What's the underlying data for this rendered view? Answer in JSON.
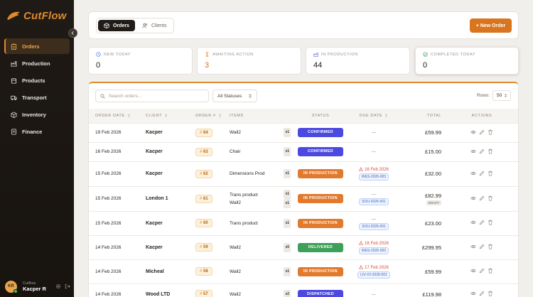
{
  "app": {
    "name": "CutFlow"
  },
  "sidebar": {
    "items": [
      {
        "label": "Orders",
        "icon": "clipboard-icon",
        "active": true
      },
      {
        "label": "Production",
        "icon": "factory-icon",
        "active": false
      },
      {
        "label": "Products",
        "icon": "box-icon",
        "active": false
      },
      {
        "label": "Transport",
        "icon": "truck-icon",
        "active": false
      },
      {
        "label": "Inventory",
        "icon": "package-icon",
        "active": false
      },
      {
        "label": "Finance",
        "icon": "receipt-icon",
        "active": false
      }
    ],
    "user": {
      "initials": "KR",
      "org": "Cutflow",
      "name": "Kacper R"
    }
  },
  "topbar": {
    "tabs": [
      {
        "label": "Orders",
        "active": true
      },
      {
        "label": "Clients",
        "active": false
      }
    ],
    "new_order": "+ New Order"
  },
  "stats": [
    {
      "label": "NEW TODAY",
      "value": "0",
      "icon": "clock-icon"
    },
    {
      "label": "AWAITING ACTION",
      "value": "3",
      "icon": "hourglass-icon"
    },
    {
      "label": "IN PRODUCTION",
      "value": "44",
      "icon": "factory-icon"
    },
    {
      "label": "COMPLETED TODAY",
      "value": "0",
      "icon": "check-circle-icon"
    }
  ],
  "toolbar": {
    "search_placeholder": "Search orders...",
    "status_filter": "All Statuses",
    "rows_label": "Rows:",
    "rows_value": "50"
  },
  "table": {
    "headers": {
      "order_date": "ORDER DATE",
      "client": "CLIENT",
      "order_no": "ORDER #",
      "items": "ITEMS",
      "status": "STATUS",
      "due_date": "DUE DATE",
      "total": "TOTAL",
      "actions": "ACTIONS"
    },
    "rows": [
      {
        "date": "19 Feb 2026",
        "client": "Kacper",
        "order": "64",
        "items": [
          "Wall2"
        ],
        "qty": [
          "x1"
        ],
        "status": "CONFIRMED",
        "status_color": "#4b49e0",
        "due": "—",
        "due_ref": "",
        "total": "£59.99",
        "draft": ""
      },
      {
        "date": "16 Feb 2026",
        "client": "Kacper",
        "order": "63",
        "items": [
          "Chair"
        ],
        "qty": [
          "x1"
        ],
        "status": "CONFIRMED",
        "status_color": "#4b49e0",
        "due": "—",
        "due_ref": "",
        "total": "£15.00",
        "draft": ""
      },
      {
        "date": "15 Feb 2026",
        "client": "Kacper",
        "order": "62",
        "items": [
          "Dimensions Prod"
        ],
        "qty": [
          "x1"
        ],
        "status": "IN PRODUCTION",
        "status_color": "#e27a2d",
        "due": "16 Feb 2026",
        "due_ref": "WES-2026-003",
        "total": "£32.00",
        "draft": ""
      },
      {
        "date": "15 Feb 2026",
        "client": "London 1",
        "order": "61",
        "items": [
          "Trans product",
          "Wall2"
        ],
        "qty": [
          "x1",
          "x1"
        ],
        "status": "IN PRODUCTION",
        "status_color": "#e27a2d",
        "due": "—",
        "due_ref": "SOU-2026-001",
        "total": "£82.99",
        "draft": "DRAFT"
      },
      {
        "date": "15 Feb 2026",
        "client": "Kacper",
        "order": "60",
        "items": [
          "Trans product"
        ],
        "qty": [
          "x1"
        ],
        "status": "IN PRODUCTION",
        "status_color": "#e27a2d",
        "due": "—",
        "due_ref": "SOU-2026-001",
        "total": "£23.00",
        "draft": ""
      },
      {
        "date": "14 Feb 2026",
        "client": "Kacper",
        "order": "59",
        "items": [
          "Wall2"
        ],
        "qty": [
          "x5"
        ],
        "status": "DELIVERED",
        "status_color": "#3ea05a",
        "due": "16 Feb 2026",
        "due_ref": "WES-2026-003",
        "total": "£299.95",
        "draft": ""
      },
      {
        "date": "14 Feb 2026",
        "client": "Micheal",
        "order": "58",
        "items": [
          "Wall2"
        ],
        "qty": [
          "x1"
        ],
        "status": "IN PRODUCTION",
        "status_color": "#e27a2d",
        "due": "17 Feb 2026",
        "due_ref": "LIV-V2-2026-001",
        "total": "£59.99",
        "draft": ""
      },
      {
        "date": "14 Feb 2026",
        "client": "Wood LTD",
        "order": "57",
        "items": [
          "Wall2"
        ],
        "qty": [
          "x2"
        ],
        "status": "DISPATCHED",
        "status_color": "#4b49e0",
        "due": "—",
        "due_ref": "",
        "total": "£119.98",
        "draft": ""
      }
    ]
  },
  "colors": {
    "accent": "#e08a2c",
    "sidebar_bg": "#1b1612",
    "page_bg": "#f1efec"
  }
}
